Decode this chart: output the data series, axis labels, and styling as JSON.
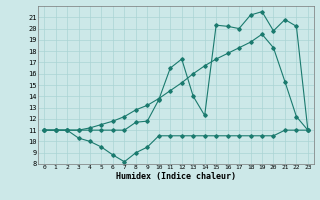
{
  "xlabel": "Humidex (Indice chaleur)",
  "bg_color": "#cce8e8",
  "line_color": "#1a7a6e",
  "grid_color": "#aad4d4",
  "xlim": [
    -0.5,
    23.5
  ],
  "ylim": [
    8,
    22
  ],
  "yticks": [
    8,
    9,
    10,
    11,
    12,
    13,
    14,
    15,
    16,
    17,
    18,
    19,
    20,
    21
  ],
  "xticks": [
    0,
    1,
    2,
    3,
    4,
    5,
    6,
    7,
    8,
    9,
    10,
    11,
    12,
    13,
    14,
    15,
    16,
    17,
    18,
    19,
    20,
    21,
    22,
    23
  ],
  "line1_x": [
    0,
    1,
    2,
    3,
    4,
    5,
    6,
    7,
    8,
    9,
    10,
    11,
    12,
    13,
    14,
    15,
    16,
    17,
    18,
    19,
    20,
    21,
    22,
    23
  ],
  "line1_y": [
    11,
    11,
    11,
    10.3,
    10,
    9.5,
    8.8,
    8.2,
    9.0,
    9.5,
    10.5,
    10.5,
    10.5,
    10.5,
    10.5,
    10.5,
    10.5,
    10.5,
    10.5,
    10.5,
    10.5,
    11,
    11,
    11
  ],
  "line2_x": [
    0,
    1,
    2,
    3,
    4,
    5,
    6,
    7,
    8,
    9,
    10,
    11,
    12,
    13,
    14,
    15,
    16,
    17,
    18,
    19,
    20,
    21,
    22,
    23
  ],
  "line2_y": [
    11,
    11,
    11,
    11,
    11.2,
    11.5,
    11.8,
    12.2,
    12.8,
    13.2,
    13.8,
    14.5,
    15.2,
    16.0,
    16.7,
    17.3,
    17.8,
    18.3,
    18.8,
    19.5,
    18.3,
    15.3,
    12.2,
    11
  ],
  "line3_x": [
    0,
    1,
    2,
    3,
    4,
    5,
    6,
    7,
    8,
    9,
    10,
    11,
    12,
    13,
    14,
    15,
    16,
    17,
    18,
    19,
    20,
    21,
    22,
    23
  ],
  "line3_y": [
    11,
    11,
    11,
    11,
    11,
    11,
    11,
    11,
    11.7,
    11.8,
    13.7,
    16.5,
    17.3,
    14.0,
    12.3,
    20.3,
    20.2,
    20.0,
    21.2,
    21.5,
    19.8,
    20.8,
    20.2,
    11
  ]
}
